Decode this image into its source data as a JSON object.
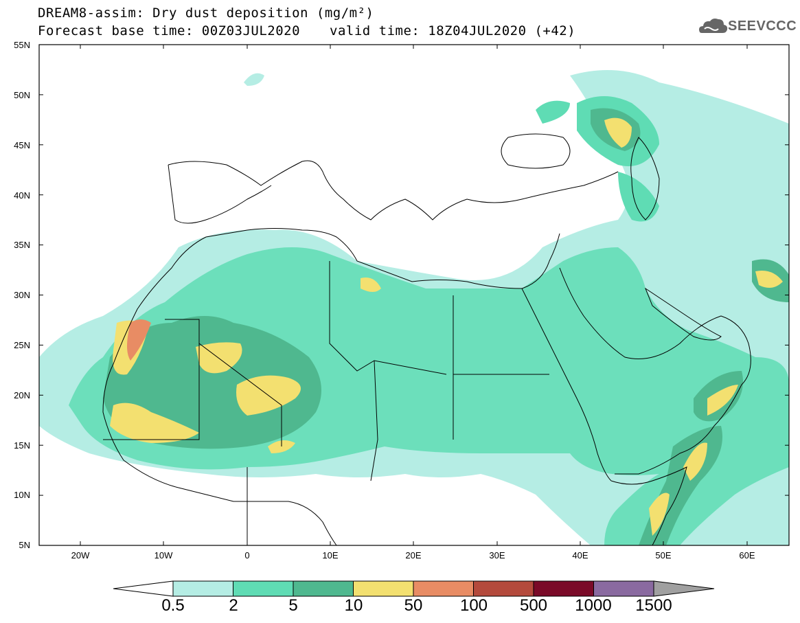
{
  "title": {
    "line1": "DREAM8-assim: Dry dust deposition (mg/m²)",
    "line2": "Forecast base time: 00Z03JUL2020",
    "valid": "valid time: 18Z04JUL2020 (+42)"
  },
  "logo": {
    "text": "SEEVCCC",
    "icon": "cloud-icon"
  },
  "axes": {
    "lat_labels": [
      "55N",
      "50N",
      "45N",
      "40N",
      "35N",
      "30N",
      "25N",
      "20N",
      "15N",
      "10N",
      "5N"
    ],
    "lon_labels": [
      "20W",
      "10W",
      "0",
      "10E",
      "20E",
      "30E",
      "40E",
      "50E",
      "60E"
    ]
  },
  "colorbar": {
    "labels": [
      "0.5",
      "2",
      "5",
      "10",
      "50",
      "100",
      "500",
      "1000",
      "1500"
    ],
    "colors": [
      "#ffffff",
      "#b5ede4",
      "#5fdcb4",
      "#4fb88f",
      "#f3e070",
      "#e88c64",
      "#b44a3c",
      "#7a0a28",
      "#8a6aa0",
      "#a0a0a0"
    ]
  }
}
